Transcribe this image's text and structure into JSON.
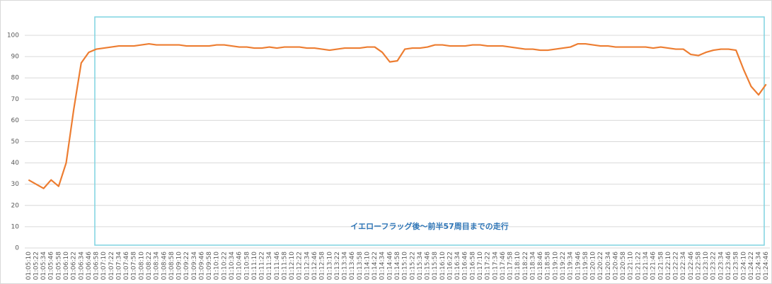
{
  "chart_data": {
    "type": "line",
    "annotation": "イエローフラッグ後～前半57周目までの走行",
    "color": "#ed7d31",
    "categories": [
      "01:05:10",
      "01:05:22",
      "01:05:34",
      "01:05:46",
      "01:05:58",
      "01:06:10",
      "01:06:22",
      "01:06:34",
      "01:06:46",
      "01:06:58",
      "01:07:10",
      "01:07:22",
      "01:07:34",
      "01:07:46",
      "01:07:58",
      "01:08:10",
      "01:08:22",
      "01:08:34",
      "01:08:46",
      "01:08:58",
      "01:09:10",
      "01:09:22",
      "01:09:34",
      "01:09:46",
      "01:09:58",
      "01:10:10",
      "01:10:22",
      "01:10:34",
      "01:10:46",
      "01:10:58",
      "01:11:10",
      "01:11:22",
      "01:11:34",
      "01:11:46",
      "01:11:58",
      "01:12:10",
      "01:12:22",
      "01:12:34",
      "01:12:46",
      "01:12:58",
      "01:13:10",
      "01:13:22",
      "01:13:34",
      "01:13:46",
      "01:13:58",
      "01:14:10",
      "01:14:22",
      "01:14:34",
      "01:14:46",
      "01:14:58",
      "01:15:10",
      "01:15:22",
      "01:15:34",
      "01:15:46",
      "01:15:58",
      "01:16:10",
      "01:16:22",
      "01:16:34",
      "01:16:46",
      "01:16:58",
      "01:17:10",
      "01:17:22",
      "01:17:34",
      "01:17:46",
      "01:17:58",
      "01:18:10",
      "01:18:22",
      "01:18:34",
      "01:18:46",
      "01:18:58",
      "01:19:10",
      "01:19:22",
      "01:19:34",
      "01:19:46",
      "01:19:58",
      "01:20:10",
      "01:20:22",
      "01:20:34",
      "01:20:46",
      "01:20:58",
      "01:21:10",
      "01:21:22",
      "01:21:34",
      "01:21:46",
      "01:21:58",
      "01:22:10",
      "01:22:22",
      "01:22:34",
      "01:22:46",
      "01:22:58",
      "01:23:10",
      "01:23:22",
      "01:23:34",
      "01:23:46",
      "01:23:58",
      "01:24:10",
      "01:24:22",
      "01:24:34",
      "01:24:46"
    ],
    "values": [
      32,
      30,
      28,
      32,
      29,
      40,
      65,
      87,
      92,
      93.5,
      94,
      94.5,
      95,
      95,
      95,
      95.5,
      96,
      95.5,
      95.5,
      95.5,
      95.5,
      95,
      95,
      95,
      95,
      95.5,
      95.5,
      95,
      94.5,
      94.5,
      94,
      94,
      94.5,
      94,
      94.5,
      94.5,
      94.5,
      94,
      94,
      93.5,
      93,
      93.5,
      94,
      94,
      94,
      94.5,
      94.5,
      92,
      87.5,
      88,
      93.5,
      94,
      94,
      94.5,
      95.5,
      95.5,
      95,
      95,
      95,
      95.5,
      95.5,
      95,
      95,
      95,
      94.5,
      94,
      93.5,
      93.5,
      93,
      93,
      93.5,
      94,
      94.5,
      96,
      96,
      95.5,
      95,
      95,
      94.5,
      94.5,
      94.5,
      94.5,
      94.5,
      94,
      94.5,
      94,
      93.5,
      93.5,
      91,
      90.5,
      92,
      93,
      93.5,
      93.5,
      93,
      84,
      76,
      72,
      77
    ],
    "ylim": [
      0,
      100
    ],
    "yticks": [
      0,
      10,
      20,
      30,
      40,
      50,
      60,
      70,
      80,
      90,
      100
    ],
    "grid": true
  }
}
